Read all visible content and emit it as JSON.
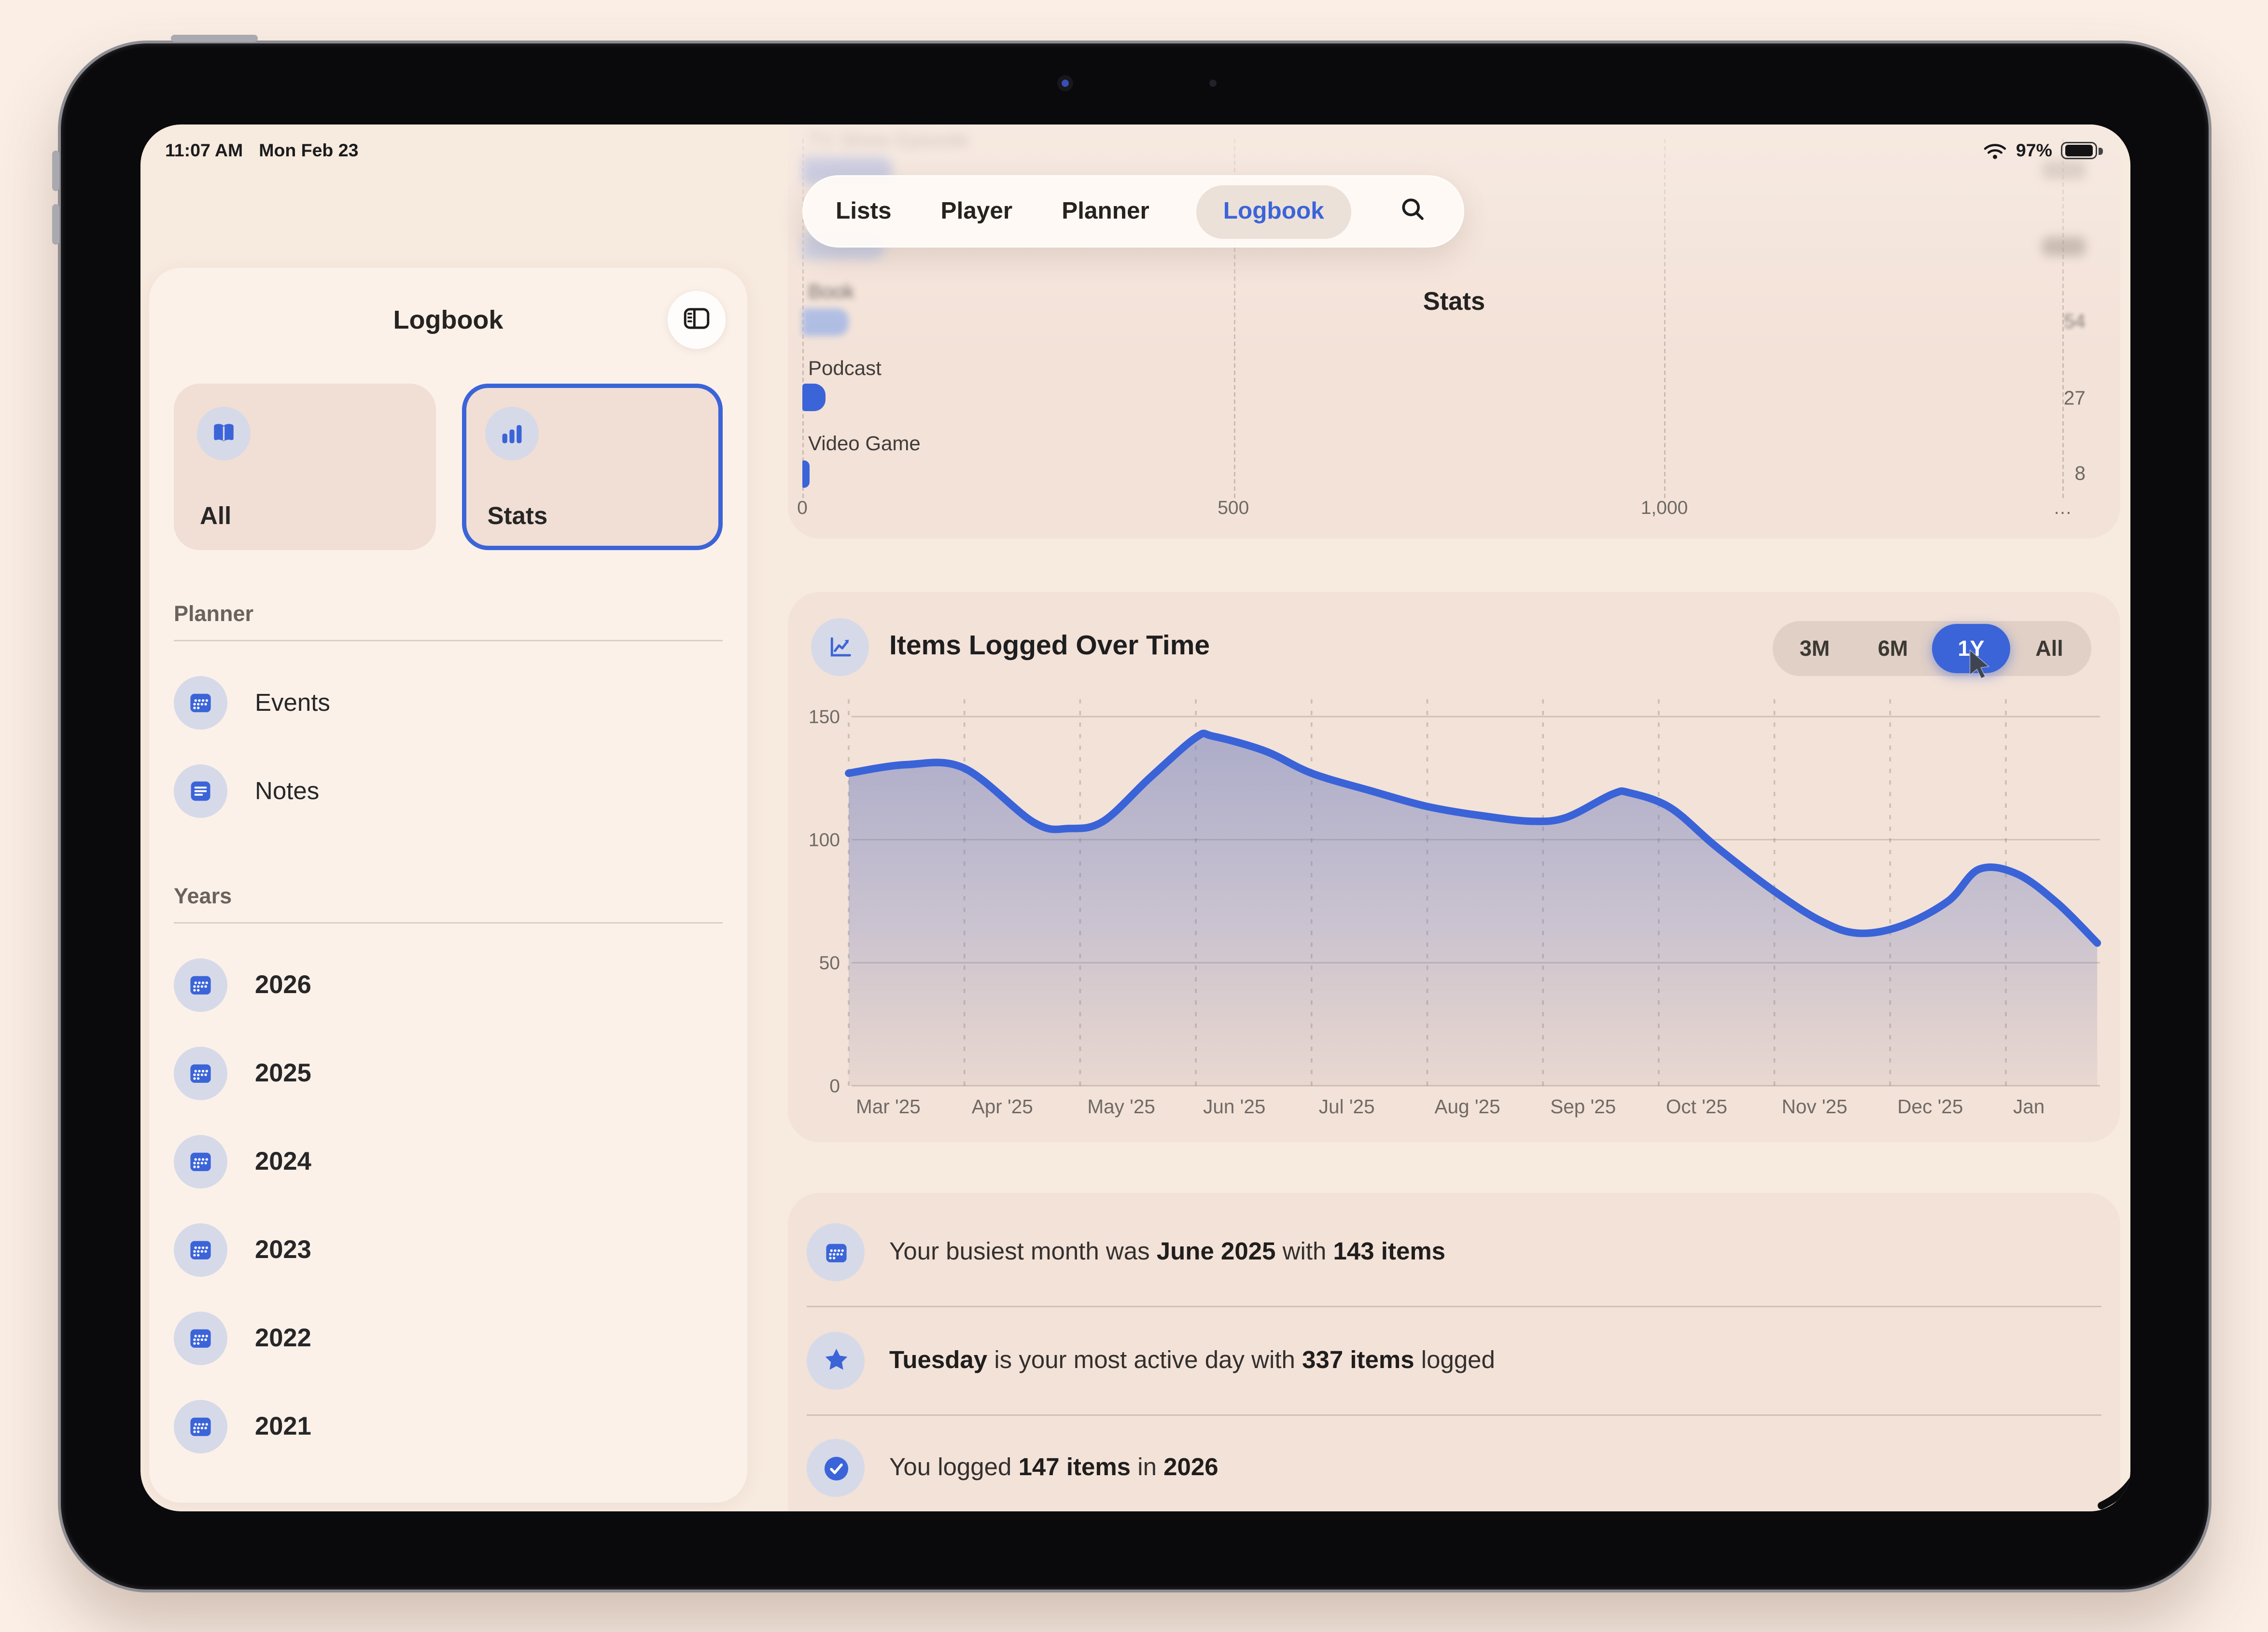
{
  "status_bar": {
    "time": "11:07 AM",
    "date": "Mon Feb 23",
    "battery_pct": "97%"
  },
  "nav_tabs": {
    "items": [
      "Lists",
      "Player",
      "Planner",
      "Logbook"
    ],
    "active": "Logbook"
  },
  "sidebar": {
    "title": "Logbook",
    "views": [
      {
        "label": "All",
        "icon": "book",
        "selected": false
      },
      {
        "label": "Stats",
        "icon": "bars",
        "selected": true
      }
    ],
    "sections": [
      {
        "title": "Planner",
        "items": [
          {
            "label": "Events",
            "icon": "calendar"
          },
          {
            "label": "Notes",
            "icon": "note"
          }
        ]
      },
      {
        "title": "Years",
        "items": [
          {
            "label": "2026",
            "icon": "calendar"
          },
          {
            "label": "2025",
            "icon": "calendar"
          },
          {
            "label": "2024",
            "icon": "calendar"
          },
          {
            "label": "2023",
            "icon": "calendar"
          },
          {
            "label": "2022",
            "icon": "calendar"
          },
          {
            "label": "2021",
            "icon": "calendar"
          }
        ]
      }
    ]
  },
  "main": {
    "nav_title": "Stats",
    "line_chart_card": {
      "title": "Items Logged Over Time",
      "icon": "chartline",
      "ranges": [
        "3M",
        "6M",
        "1Y",
        "All"
      ],
      "selected_range": "1Y"
    },
    "insights": [
      {
        "icon": "calendar",
        "segments": [
          [
            "Your busiest month was ",
            false
          ],
          [
            "June 2025",
            true
          ],
          [
            " with ",
            false
          ],
          [
            "143 items",
            true
          ]
        ]
      },
      {
        "icon": "star",
        "segments": [
          [
            "Tuesday",
            true
          ],
          [
            " is your most active day with ",
            false
          ],
          [
            "337 items",
            true
          ],
          [
            " logged",
            false
          ]
        ]
      },
      {
        "icon": "check",
        "segments": [
          [
            "You logged ",
            false
          ],
          [
            "147 items",
            true
          ],
          [
            " in ",
            false
          ],
          [
            "2026",
            true
          ]
        ]
      }
    ]
  },
  "chart_data": [
    {
      "type": "bar",
      "orientation": "horizontal",
      "context": "Stats — items logged by category (top rows blurred behind floating tab bar)",
      "categories": [
        "TV Show Episode",
        "",
        "Book",
        "Podcast",
        "Video Game"
      ],
      "values": [
        null,
        null,
        54,
        27,
        8
      ],
      "bar_lengths_est_units": [
        105,
        95,
        54,
        27,
        8
      ],
      "xlim": [
        0,
        1500
      ],
      "xticks": [
        {
          "u": 0,
          "label": "0"
        },
        {
          "u": 500,
          "label": "500"
        },
        {
          "u": 1000,
          "label": "1,000"
        },
        {
          "u": 1462,
          "label": "…"
        }
      ]
    },
    {
      "type": "area",
      "title": "Items Logged Over Time",
      "x_labels": [
        "Mar '25",
        "Apr '25",
        "May '25",
        "Jun '25",
        "Jul '25",
        "Aug '25",
        "Sep '25",
        "Oct '25",
        "Nov '25",
        "Dec '25",
        "Jan"
      ],
      "monthly_values_est": [
        127,
        129,
        106,
        142,
        127,
        113,
        108,
        112,
        79,
        63,
        88
      ],
      "curve_points": [
        [
          0,
          127
        ],
        [
          0.5,
          130.5
        ],
        [
          1,
          129
        ],
        [
          1.6,
          107
        ],
        [
          1.9,
          104.5
        ],
        [
          2.2,
          107.5
        ],
        [
          2.6,
          125
        ],
        [
          3,
          141.5
        ],
        [
          3.15,
          142
        ],
        [
          3.6,
          136
        ],
        [
          4,
          127
        ],
        [
          4.5,
          120
        ],
        [
          5,
          113.5
        ],
        [
          5.5,
          109.5
        ],
        [
          5.9,
          107.5
        ],
        [
          6.2,
          109
        ],
        [
          6.6,
          118.5
        ],
        [
          6.75,
          119
        ],
        [
          7.1,
          113
        ],
        [
          7.5,
          97
        ],
        [
          8,
          79
        ],
        [
          8.4,
          67
        ],
        [
          8.72,
          62
        ],
        [
          9.1,
          65
        ],
        [
          9.5,
          75
        ],
        [
          9.77,
          88
        ],
        [
          10.1,
          86
        ],
        [
          10.45,
          74
        ],
        [
          10.79,
          58
        ]
      ],
      "ylim": [
        0,
        150
      ],
      "yticks": [
        0,
        50,
        100,
        150
      ],
      "grid": {
        "horizontal": "solid",
        "vertical": "dashed"
      },
      "legend": "none"
    }
  ],
  "colors": {
    "accent": "#3b64d8",
    "bar_light": "#9db3e6",
    "lavender_circle": "#d6d9e8",
    "card": "#f3e2d8",
    "page": "#f7eade",
    "sidebar": "#fbf1e9"
  }
}
